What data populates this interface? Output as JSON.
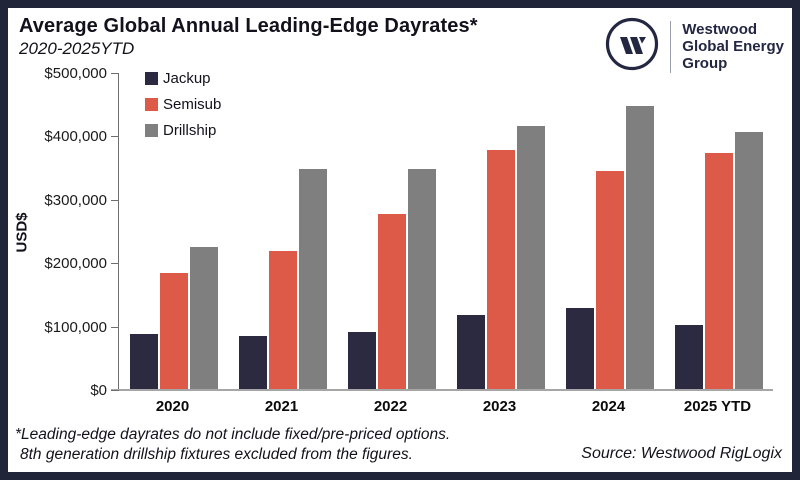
{
  "frame": {
    "border_color": "#212539",
    "background": "#ffffff"
  },
  "header": {
    "title": "Average Global Annual Leading-Edge Dayrates*",
    "subtitle": "2020-2025YTD"
  },
  "logo": {
    "mark": "westwood-w-monogram",
    "color": "#232741",
    "lines": [
      "Westwood",
      "Global Energy",
      "Group"
    ]
  },
  "chart_data": {
    "type": "bar",
    "title": "Average Global Annual Leading-Edge Dayrates*",
    "subtitle": "2020-2025YTD",
    "categories": [
      "2020",
      "2021",
      "2022",
      "2023",
      "2024",
      "2025 YTD"
    ],
    "series": [
      {
        "name": "Jackup",
        "color": "#2B2A40",
        "values": [
          88000,
          85000,
          92000,
          118000,
          130000,
          103000
        ]
      },
      {
        "name": "Semisub",
        "color": "#DD5A49",
        "values": [
          185000,
          220000,
          278000,
          380000,
          347000,
          375000
        ]
      },
      {
        "name": "Drillship",
        "color": "#7F7F7F",
        "values": [
          227000,
          350000,
          350000,
          418000,
          450000,
          408000
        ]
      }
    ],
    "xlabel": "",
    "ylabel": "USD$",
    "ylim": [
      0,
      500000
    ],
    "y_ticks": [
      {
        "value": 0,
        "label": "$0"
      },
      {
        "value": 100000,
        "label": "$100,000"
      },
      {
        "value": 200000,
        "label": "$200,000"
      },
      {
        "value": 300000,
        "label": "$300,000"
      },
      {
        "value": 400000,
        "label": "$400,000"
      },
      {
        "value": 500000,
        "label": "$500,000"
      }
    ],
    "grid": false,
    "legend_position": "top-left"
  },
  "footer": {
    "footnote_line1": "*Leading-edge dayrates do not include fixed/pre-priced options.",
    "footnote_line2": "8th generation drillship fixtures excluded from the figures.",
    "source": "Source: Westwood RigLogix"
  }
}
